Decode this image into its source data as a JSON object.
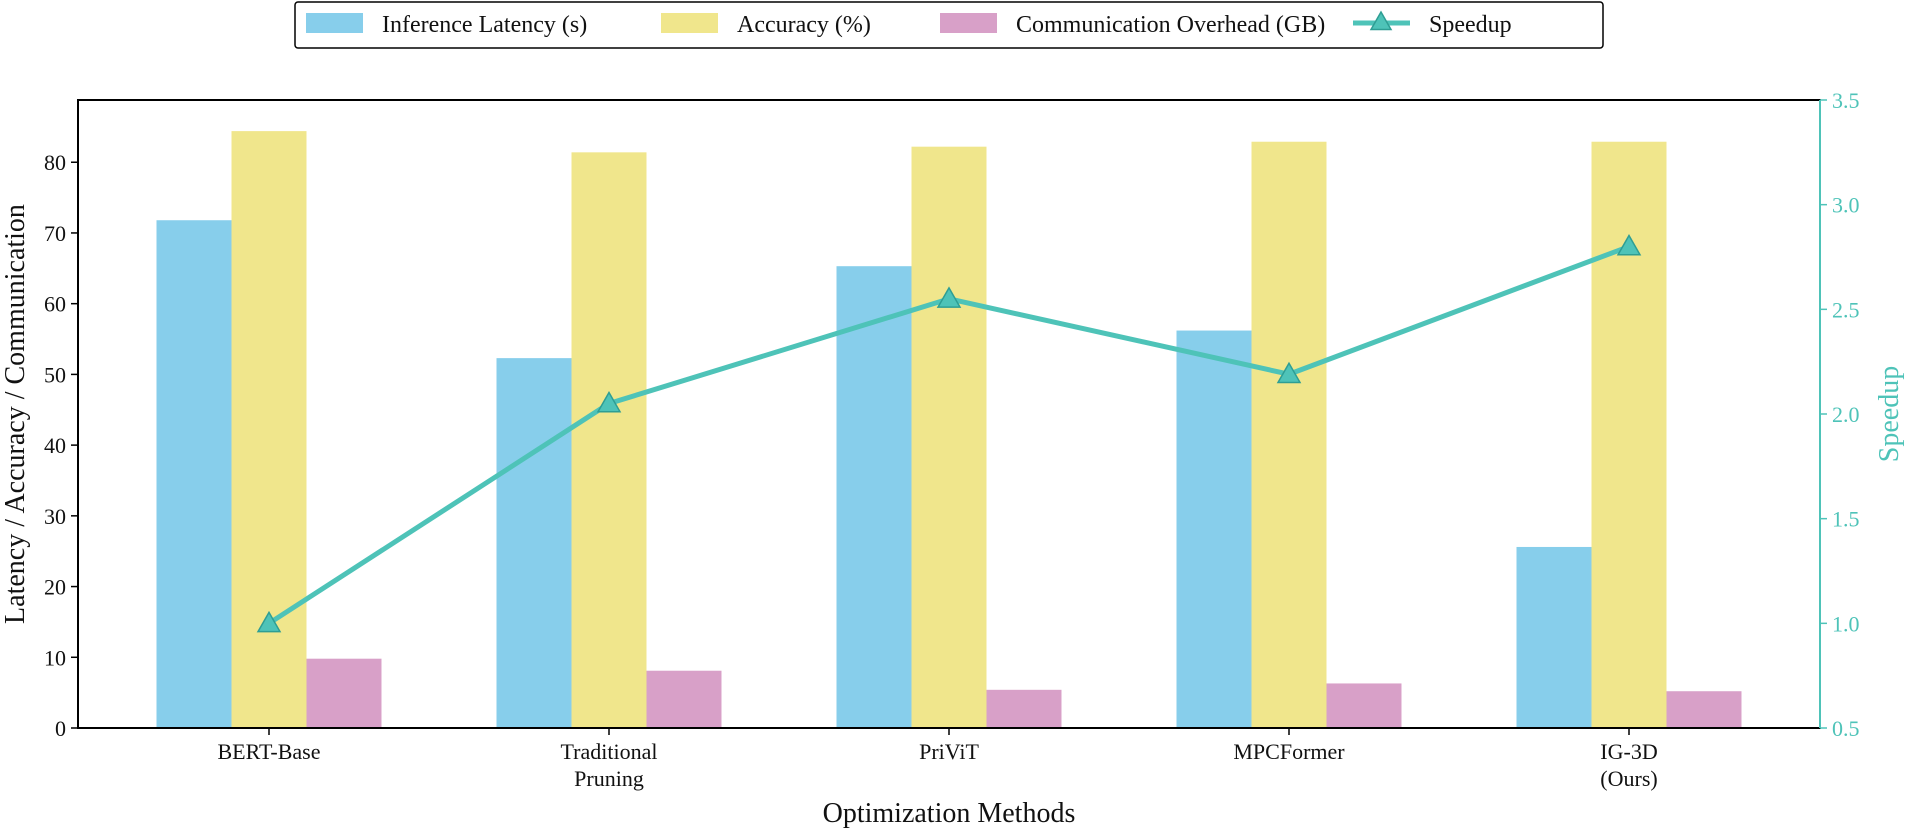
{
  "chart_data": {
    "type": "bar",
    "categories": [
      [
        "BERT-Base"
      ],
      [
        "Traditional",
        "Pruning"
      ],
      [
        "PriViT"
      ],
      [
        "MPCFormer"
      ],
      [
        "IG-3D",
        "(Ours)"
      ]
    ],
    "series": [
      {
        "name": "Inference Latency (s)",
        "axis": "left",
        "kind": "bar",
        "color": "#87CEEB",
        "values": [
          71.8,
          52.3,
          65.3,
          56.2,
          25.6
        ]
      },
      {
        "name": "Accuracy (%)",
        "axis": "left",
        "kind": "bar",
        "color": "#F0E68C",
        "values": [
          84.4,
          81.4,
          82.2,
          82.9,
          82.9
        ]
      },
      {
        "name": "Communication Overhead (GB)",
        "axis": "left",
        "kind": "bar",
        "color": "#D8A0C8",
        "values": [
          9.8,
          8.1,
          5.4,
          6.3,
          5.2
        ]
      },
      {
        "name": "Speedup",
        "axis": "right",
        "kind": "line",
        "color": "#4EC3B8",
        "values": [
          1.0,
          2.05,
          2.55,
          2.19,
          2.8
        ]
      }
    ],
    "xlabel": "Optimization Methods",
    "ylabel": "Latency / Accuracy / Communication",
    "ylabel_right": "Speedup",
    "ylim": [
      0,
      88.8
    ],
    "ylim_right": [
      0.5,
      3.5
    ],
    "yticks": [
      0,
      10,
      20,
      30,
      40,
      50,
      60,
      70,
      80
    ],
    "yticks_right": [
      "0.5",
      "1.0",
      "1.5",
      "2.0",
      "2.5",
      "3.0",
      "3.5"
    ],
    "legend_position": "top-center",
    "right_axis_color": "#4EC3B8"
  }
}
